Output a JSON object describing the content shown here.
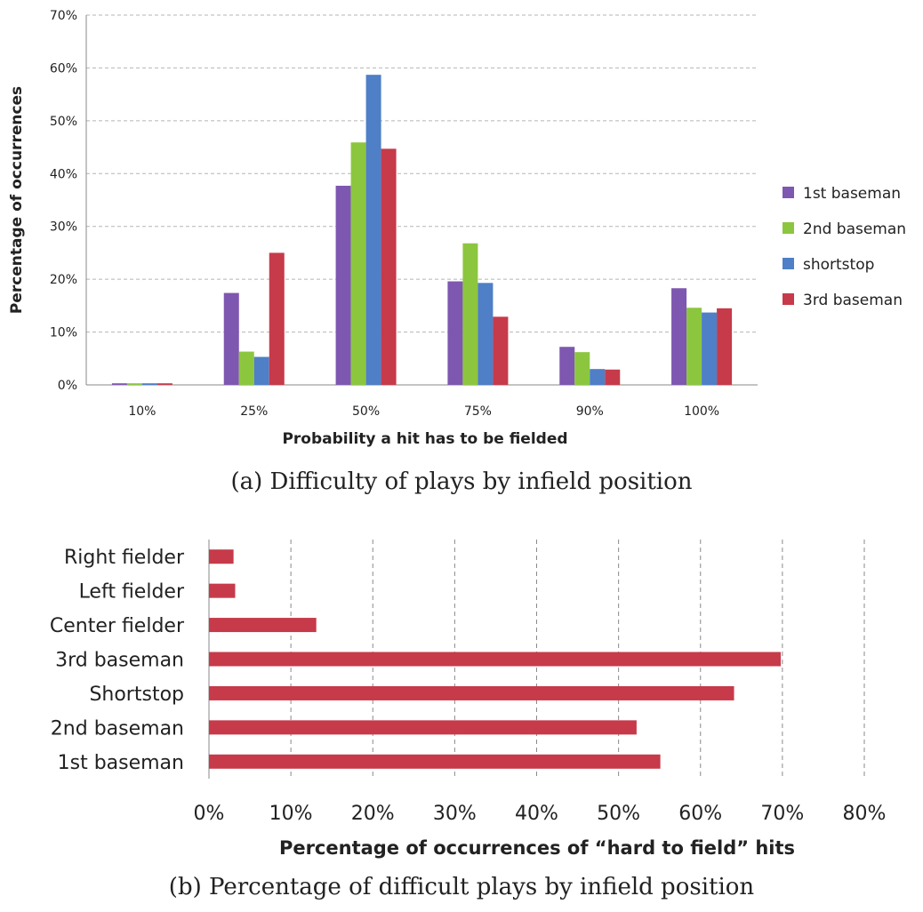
{
  "chart_data": [
    {
      "type": "bar",
      "categories": [
        "10%",
        "25%",
        "50%",
        "75%",
        "90%",
        "100%"
      ],
      "series": [
        {
          "name": "1st baseman",
          "color": "#7e57b0",
          "values": [
            0.3,
            17.4,
            37.7,
            19.6,
            7.2,
            18.3
          ]
        },
        {
          "name": "2nd baseman",
          "color": "#8cc63f",
          "values": [
            0.3,
            6.3,
            45.9,
            26.8,
            6.2,
            14.6
          ]
        },
        {
          "name": "shortstop",
          "color": "#4e7fc7",
          "values": [
            0.3,
            5.3,
            58.7,
            19.3,
            3.0,
            13.7
          ]
        },
        {
          "name": "3rd baseman",
          "color": "#c63a4a",
          "values": [
            0.3,
            25.0,
            44.7,
            12.9,
            2.9,
            14.5
          ]
        }
      ],
      "yticks": [
        "0%",
        "10%",
        "20%",
        "30%",
        "40%",
        "50%",
        "60%",
        "70%"
      ],
      "ylim": [
        0,
        70
      ],
      "xlabel": "Probability a hit has to be fielded",
      "ylabel": "Percentage of occurrences",
      "grid": true,
      "legend": "right",
      "caption": "(a) Difficulty of plays by infield position"
    },
    {
      "type": "bar",
      "orientation": "horizontal",
      "categories": [
        "Right fielder",
        "Left fielder",
        "Center fielder",
        "3rd baseman",
        "Shortstop",
        "2nd baseman",
        "1st baseman"
      ],
      "values": [
        3.0,
        3.2,
        13.1,
        69.8,
        64.1,
        52.2,
        55.1
      ],
      "color": "#c63a4a",
      "xticks": [
        "0%",
        "10%",
        "20%",
        "30%",
        "40%",
        "50%",
        "60%",
        "70%",
        "80%"
      ],
      "xlim": [
        0,
        80
      ],
      "xlabel": "Percentage of occurrences of “hard to field” hits",
      "grid": true,
      "caption": "(b) Percentage of difficult plays by infield position"
    }
  ]
}
